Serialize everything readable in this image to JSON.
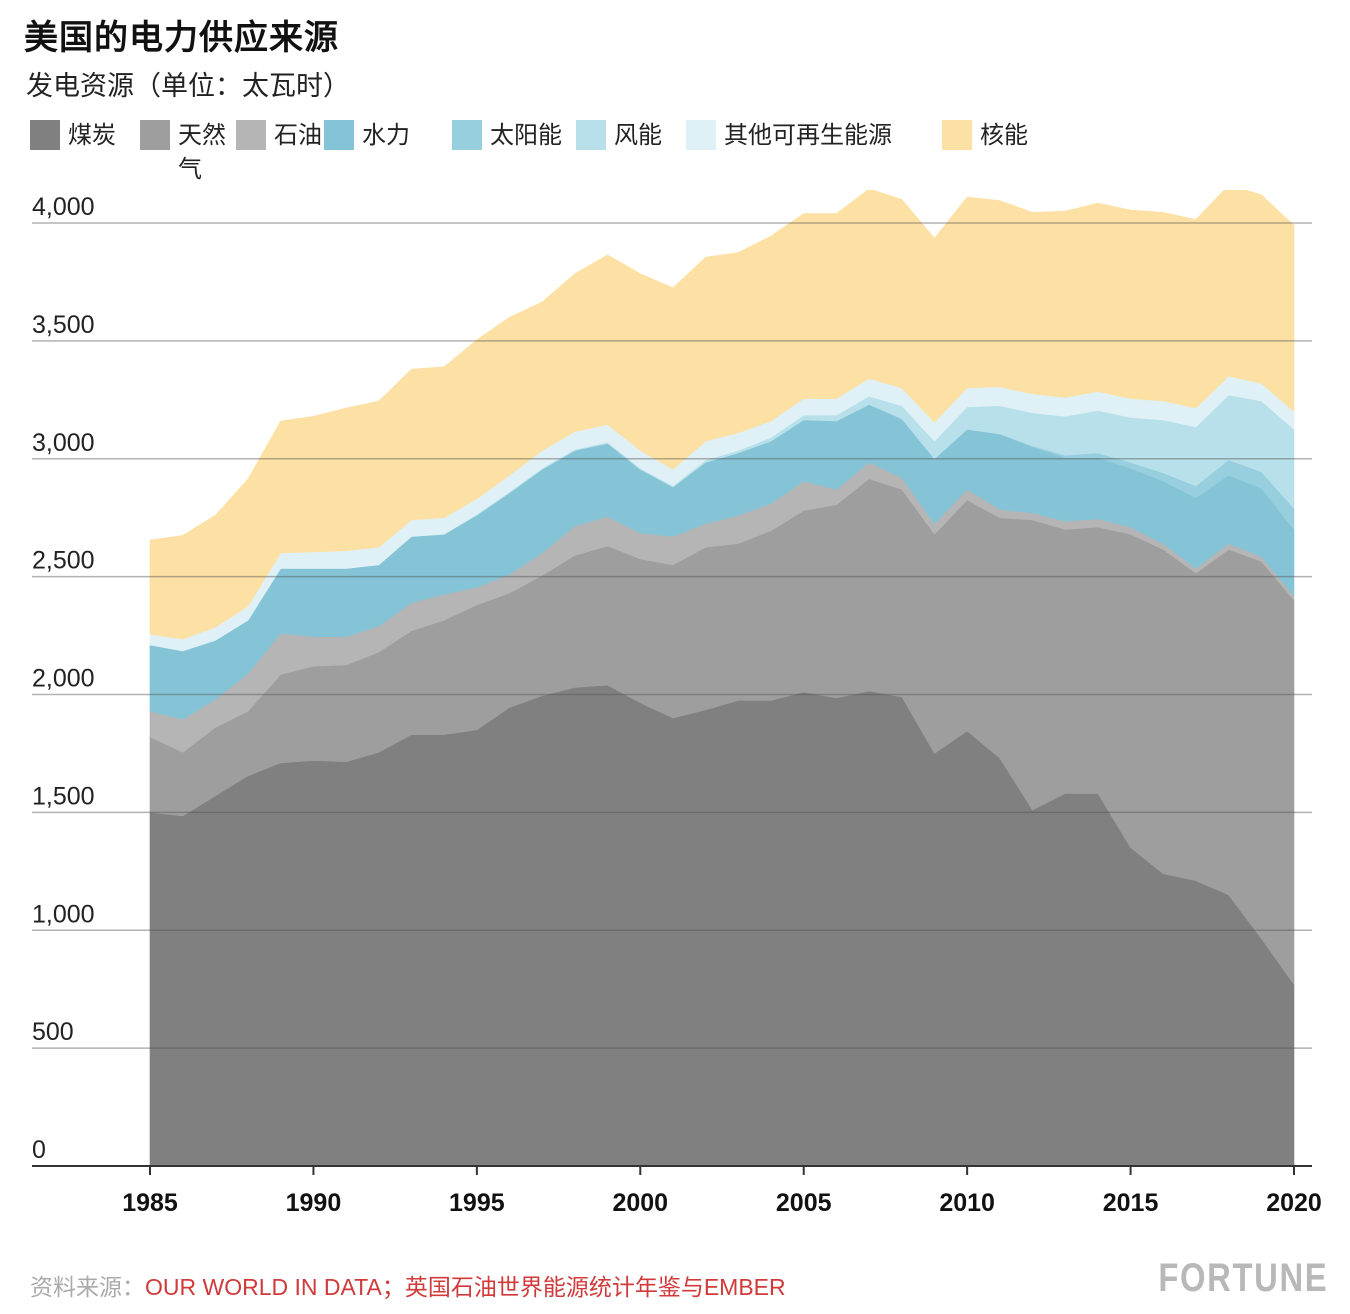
{
  "chart_data": {
    "type": "area",
    "title": "美国的电力供应来源",
    "subtitle": "发电资源（单位：太瓦时）",
    "stacked": true,
    "x": [
      1985,
      1986,
      1987,
      1988,
      1989,
      1990,
      1991,
      1992,
      1993,
      1994,
      1995,
      1996,
      1997,
      1998,
      1999,
      2000,
      2001,
      2002,
      2003,
      2004,
      2005,
      2006,
      2007,
      2008,
      2009,
      2010,
      2011,
      2012,
      2013,
      2014,
      2015,
      2016,
      2017,
      2018,
      2019,
      2020
    ],
    "ylim": [
      0,
      4000
    ],
    "yticks": [
      0,
      500,
      1000,
      1500,
      2000,
      2500,
      3000,
      3500,
      4000
    ],
    "ytick_labels": [
      "0",
      "500",
      "1,000",
      "1,500",
      "2,000",
      "2,500",
      "3,000",
      "3,500",
      "4,000"
    ],
    "xticks": [
      1985,
      1990,
      1995,
      2000,
      2005,
      2010,
      2015,
      2020
    ],
    "xtick_labels": [
      "1985",
      "1990",
      "1995",
      "2000",
      "2005",
      "2010",
      "2015",
      "2020"
    ],
    "grid": true,
    "legend_position": "top",
    "series": [
      {
        "name": "煤炭",
        "color": "#808080",
        "values": [
          1500,
          1485,
          1570,
          1655,
          1710,
          1720,
          1715,
          1755,
          1830,
          1830,
          1850,
          1945,
          1995,
          2030,
          2040,
          1965,
          1900,
          1935,
          1975,
          1975,
          2010,
          1985,
          2015,
          1990,
          1750,
          1845,
          1730,
          1510,
          1580,
          1580,
          1350,
          1240,
          1210,
          1150,
          965,
          770
        ]
      },
      {
        "name": "天然气",
        "color": "#9e9e9e",
        "values": [
          320,
          270,
          290,
          275,
          375,
          400,
          410,
          425,
          440,
          485,
          530,
          485,
          510,
          560,
          590,
          610,
          650,
          690,
          665,
          720,
          770,
          820,
          900,
          880,
          930,
          980,
          1020,
          1230,
          1120,
          1130,
          1330,
          1375,
          1305,
          1465,
          1600,
          1630
        ]
      },
      {
        "name": "石油",
        "color": "#b5b5b5",
        "values": [
          110,
          140,
          120,
          160,
          175,
          125,
          120,
          110,
          120,
          110,
          75,
          80,
          95,
          125,
          125,
          110,
          120,
          100,
          120,
          115,
          125,
          65,
          70,
          50,
          45,
          45,
          35,
          30,
          35,
          35,
          30,
          25,
          20,
          25,
          20,
          20
        ]
      },
      {
        "name": "水力",
        "color": "#85c4d6",
        "values": [
          280,
          290,
          250,
          225,
          275,
          290,
          290,
          260,
          280,
          255,
          305,
          345,
          355,
          320,
          310,
          270,
          210,
          260,
          265,
          265,
          260,
          290,
          245,
          250,
          275,
          255,
          320,
          280,
          270,
          260,
          250,
          265,
          300,
          290,
          290,
          280
        ]
      },
      {
        "name": "太阳能",
        "color": "#98cfdf",
        "values": [
          0,
          0,
          0,
          0,
          0,
          0,
          0,
          0,
          0,
          0,
          0,
          0,
          0,
          0,
          0,
          0,
          0,
          0,
          0,
          0,
          0,
          0,
          0,
          0,
          0,
          0,
          0,
          5,
          10,
          20,
          25,
          35,
          50,
          65,
          70,
          90
        ]
      },
      {
        "name": "风能",
        "color": "#b8e0ea",
        "values": [
          0,
          0,
          0,
          0,
          0,
          0,
          0,
          0,
          0,
          0,
          5,
          5,
          5,
          5,
          5,
          5,
          5,
          10,
          10,
          15,
          20,
          25,
          35,
          55,
          75,
          95,
          120,
          140,
          165,
          180,
          190,
          225,
          250,
          275,
          300,
          335
        ]
      },
      {
        "name": "其他可再生能源",
        "color": "#dff1f6",
        "values": [
          45,
          50,
          55,
          60,
          65,
          70,
          75,
          75,
          70,
          70,
          65,
          70,
          75,
          75,
          75,
          75,
          70,
          80,
          75,
          70,
          70,
          70,
          75,
          75,
          80,
          80,
          80,
          80,
          80,
          80,
          80,
          80,
          80,
          80,
          75,
          75
        ]
      },
      {
        "name": "核能",
        "color": "#fde0a3",
        "values": [
          400,
          440,
          475,
          540,
          560,
          575,
          605,
          620,
          640,
          640,
          675,
          670,
          630,
          670,
          720,
          750,
          770,
          780,
          765,
          785,
          785,
          785,
          805,
          800,
          780,
          810,
          790,
          770,
          790,
          800,
          800,
          800,
          800,
          810,
          800,
          790
        ]
      }
    ]
  },
  "source": {
    "label": "资料来源：",
    "text": "OUR WORLD IN DATA；英国石油世界能源统计年鉴与EMBER"
  },
  "brand": "FORTUNE"
}
